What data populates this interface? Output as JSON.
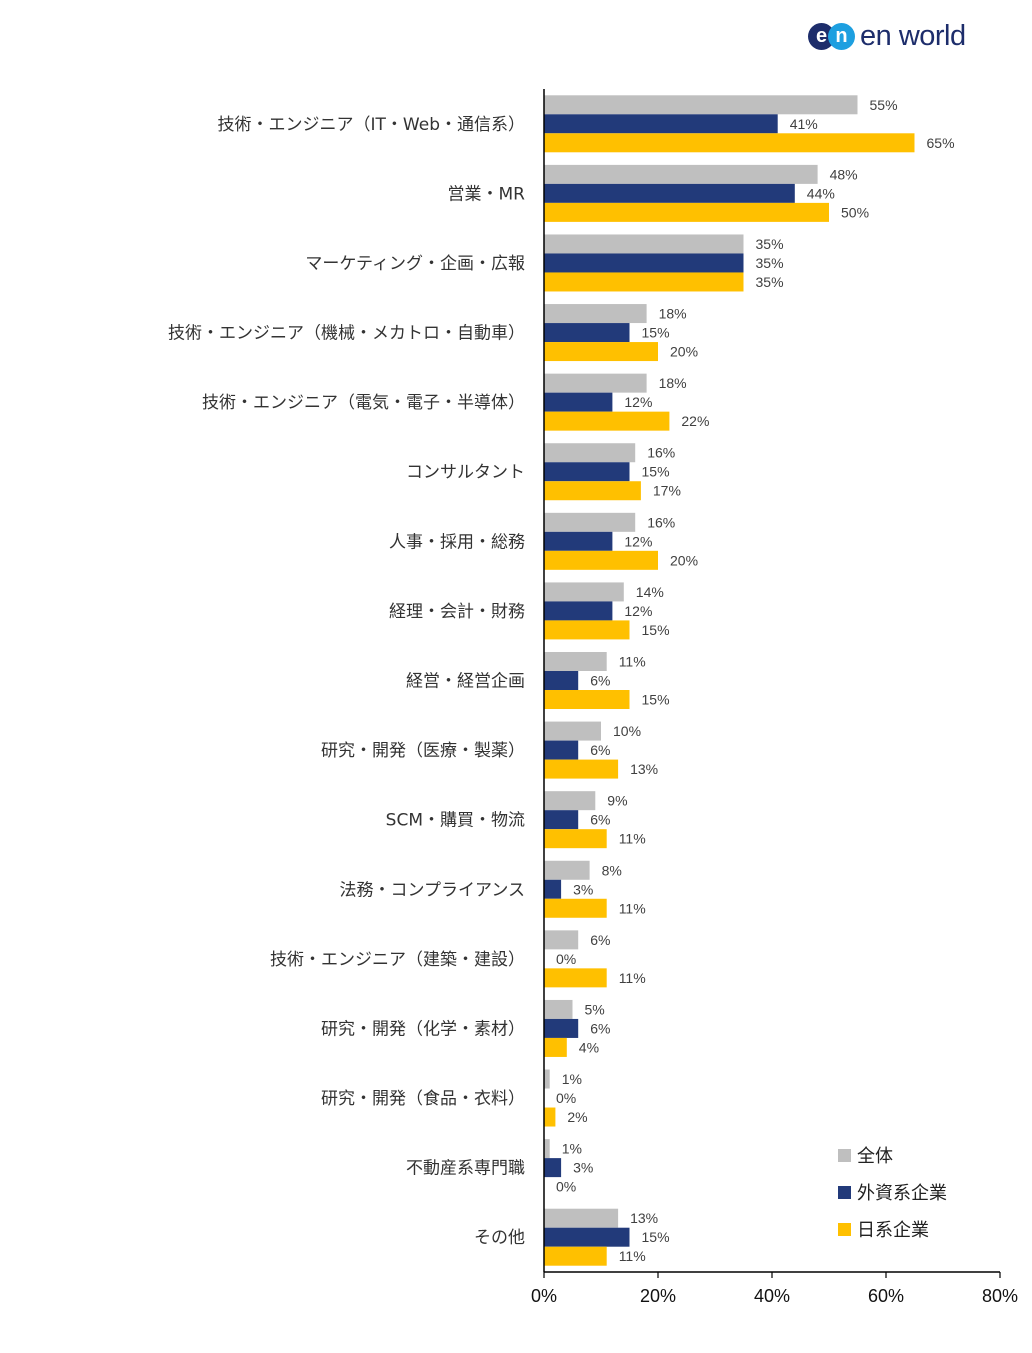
{
  "logo": {
    "mark_left": "e",
    "mark_right": "n",
    "wordmark": "en world",
    "colors": [
      "#1d2d6b",
      "#1d9fe0"
    ]
  },
  "chart_data": {
    "type": "bar",
    "orientation": "horizontal",
    "categories": [
      "技術・エンジニア（IT・Web・通信系）",
      "営業・MR",
      "マーケティング・企画・広報",
      "技術・エンジニア（機械・メカトロ・自動車）",
      "技術・エンジニア（電気・電子・半導体）",
      "コンサルタント",
      "人事・採用・総務",
      "経理・会計・財務",
      "経営・経営企画",
      "研究・開発（医療・製薬）",
      "SCM・購買・物流",
      "法務・コンプライアンス",
      "技術・エンジニア（建築・建設）",
      "研究・開発（化学・素材）",
      "研究・開発（食品・衣料）",
      "不動産系専門職",
      "その他"
    ],
    "series": [
      {
        "name": "全体",
        "color": "#bfbfbf",
        "values": [
          55,
          48,
          35,
          18,
          18,
          16,
          16,
          14,
          11,
          10,
          9,
          8,
          6,
          5,
          1,
          1,
          13
        ]
      },
      {
        "name": "外資系企業",
        "color": "#223a7a",
        "values": [
          41,
          44,
          35,
          15,
          12,
          15,
          12,
          12,
          6,
          6,
          6,
          3,
          0,
          6,
          0,
          3,
          15
        ]
      },
      {
        "name": "日系企業",
        "color": "#ffc000",
        "values": [
          65,
          50,
          35,
          20,
          22,
          17,
          20,
          15,
          15,
          13,
          11,
          11,
          11,
          4,
          2,
          0,
          11
        ]
      }
    ],
    "xlim": [
      0,
      80
    ],
    "xticks": [
      0,
      20,
      40,
      60,
      80
    ],
    "tick_suffix": "%",
    "label_suffix": "%",
    "legend_position": "bottom-right",
    "grid": false
  }
}
